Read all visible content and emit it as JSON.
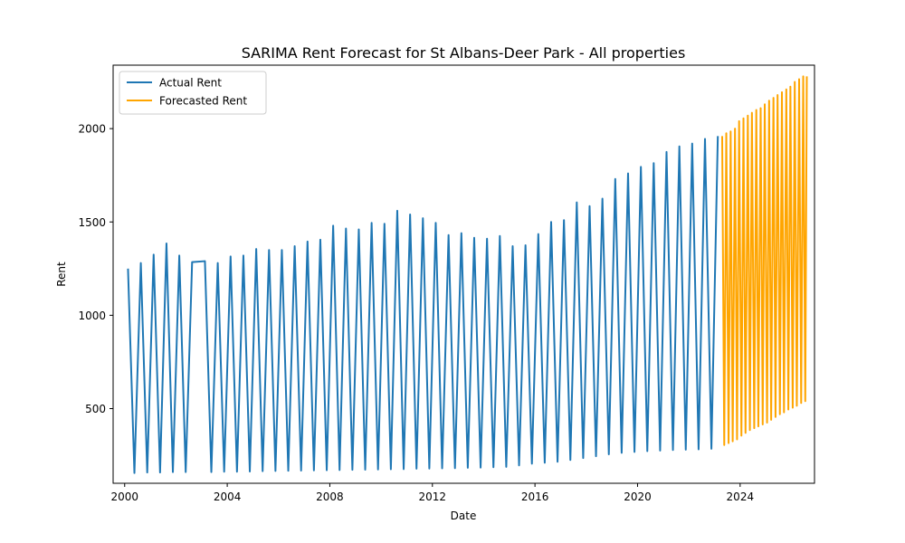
{
  "chart_data": {
    "type": "line",
    "title": "SARIMA Rent Forecast for St Albans-Deer Park - All properties",
    "xlabel": "Date",
    "ylabel": "Rent",
    "xlim": [
      1999.55,
      2026.9
    ],
    "ylim": [
      100,
      2340
    ],
    "x_ticks": [
      2000,
      2004,
      2008,
      2012,
      2016,
      2020,
      2024
    ],
    "y_ticks": [
      500,
      1000,
      1500,
      2000
    ],
    "grid": false,
    "legend": "top-left",
    "series": [
      {
        "name": "Actual Rent",
        "color": "#1f77b4",
        "points": [
          [
            2000.13,
            1250
          ],
          [
            2000.38,
            155
          ],
          [
            2000.63,
            1280
          ],
          [
            2000.88,
            158
          ],
          [
            2001.13,
            1325
          ],
          [
            2001.38,
            158
          ],
          [
            2001.63,
            1385
          ],
          [
            2001.88,
            160
          ],
          [
            2002.13,
            1320
          ],
          [
            2002.38,
            160
          ],
          [
            2002.63,
            1285
          ],
          [
            2003.13,
            1290
          ],
          [
            2003.38,
            160
          ],
          [
            2003.63,
            1280
          ],
          [
            2003.88,
            162
          ],
          [
            2004.13,
            1315
          ],
          [
            2004.38,
            162
          ],
          [
            2004.63,
            1320
          ],
          [
            2004.88,
            163
          ],
          [
            2005.13,
            1355
          ],
          [
            2005.38,
            165
          ],
          [
            2005.63,
            1350
          ],
          [
            2005.88,
            166
          ],
          [
            2006.13,
            1350
          ],
          [
            2006.38,
            167
          ],
          [
            2006.63,
            1370
          ],
          [
            2006.88,
            168
          ],
          [
            2007.13,
            1395
          ],
          [
            2007.38,
            169
          ],
          [
            2007.63,
            1405
          ],
          [
            2007.88,
            170
          ],
          [
            2008.13,
            1480
          ],
          [
            2008.38,
            171
          ],
          [
            2008.63,
            1465
          ],
          [
            2008.88,
            172
          ],
          [
            2009.13,
            1460
          ],
          [
            2009.38,
            173
          ],
          [
            2009.63,
            1495
          ],
          [
            2009.88,
            174
          ],
          [
            2010.13,
            1490
          ],
          [
            2010.38,
            175
          ],
          [
            2010.63,
            1560
          ],
          [
            2010.88,
            176
          ],
          [
            2011.13,
            1540
          ],
          [
            2011.38,
            178
          ],
          [
            2011.63,
            1520
          ],
          [
            2011.88,
            179
          ],
          [
            2012.13,
            1495
          ],
          [
            2012.38,
            180
          ],
          [
            2012.63,
            1430
          ],
          [
            2012.88,
            181
          ],
          [
            2013.13,
            1440
          ],
          [
            2013.38,
            183
          ],
          [
            2013.63,
            1415
          ],
          [
            2013.88,
            184
          ],
          [
            2014.13,
            1410
          ],
          [
            2014.38,
            186
          ],
          [
            2014.63,
            1425
          ],
          [
            2014.88,
            188
          ],
          [
            2015.13,
            1370
          ],
          [
            2015.38,
            196
          ],
          [
            2015.63,
            1375
          ],
          [
            2015.88,
            205
          ],
          [
            2016.13,
            1435
          ],
          [
            2016.38,
            210
          ],
          [
            2016.63,
            1500
          ],
          [
            2016.88,
            215
          ],
          [
            2017.13,
            1510
          ],
          [
            2017.38,
            225
          ],
          [
            2017.63,
            1605
          ],
          [
            2017.88,
            235
          ],
          [
            2018.13,
            1585
          ],
          [
            2018.38,
            245
          ],
          [
            2018.63,
            1625
          ],
          [
            2018.88,
            255
          ],
          [
            2019.13,
            1730
          ],
          [
            2019.38,
            263
          ],
          [
            2019.63,
            1760
          ],
          [
            2019.88,
            268
          ],
          [
            2020.13,
            1795
          ],
          [
            2020.38,
            272
          ],
          [
            2020.63,
            1815
          ],
          [
            2020.88,
            275
          ],
          [
            2021.13,
            1875
          ],
          [
            2021.38,
            278
          ],
          [
            2021.63,
            1905
          ],
          [
            2021.88,
            280
          ],
          [
            2022.13,
            1920
          ],
          [
            2022.38,
            282
          ],
          [
            2022.63,
            1945
          ],
          [
            2022.88,
            285
          ],
          [
            2023.13,
            1960
          ]
        ]
      },
      {
        "name": "Forecasted Rent",
        "color": "#ffa500",
        "points": [
          [
            2023.3,
            1960
          ],
          [
            2023.38,
            305
          ],
          [
            2023.46,
            1975
          ],
          [
            2023.55,
            315
          ],
          [
            2023.63,
            1985
          ],
          [
            2023.71,
            325
          ],
          [
            2023.8,
            2000
          ],
          [
            2023.88,
            335
          ],
          [
            2023.96,
            2040
          ],
          [
            2024.05,
            355
          ],
          [
            2024.13,
            2055
          ],
          [
            2024.21,
            370
          ],
          [
            2024.3,
            2070
          ],
          [
            2024.38,
            385
          ],
          [
            2024.46,
            2085
          ],
          [
            2024.55,
            395
          ],
          [
            2024.63,
            2100
          ],
          [
            2024.71,
            405
          ],
          [
            2024.8,
            2110
          ],
          [
            2024.88,
            415
          ],
          [
            2024.96,
            2130
          ],
          [
            2025.05,
            425
          ],
          [
            2025.13,
            2150
          ],
          [
            2025.21,
            440
          ],
          [
            2025.3,
            2165
          ],
          [
            2025.38,
            455
          ],
          [
            2025.46,
            2180
          ],
          [
            2025.55,
            470
          ],
          [
            2025.63,
            2195
          ],
          [
            2025.71,
            480
          ],
          [
            2025.8,
            2210
          ],
          [
            2025.88,
            495
          ],
          [
            2025.96,
            2225
          ],
          [
            2026.05,
            505
          ],
          [
            2026.13,
            2250
          ],
          [
            2026.21,
            515
          ],
          [
            2026.3,
            2265
          ],
          [
            2026.38,
            530
          ],
          [
            2026.46,
            2280
          ],
          [
            2026.54,
            540
          ],
          [
            2026.6,
            2280
          ]
        ]
      }
    ]
  }
}
